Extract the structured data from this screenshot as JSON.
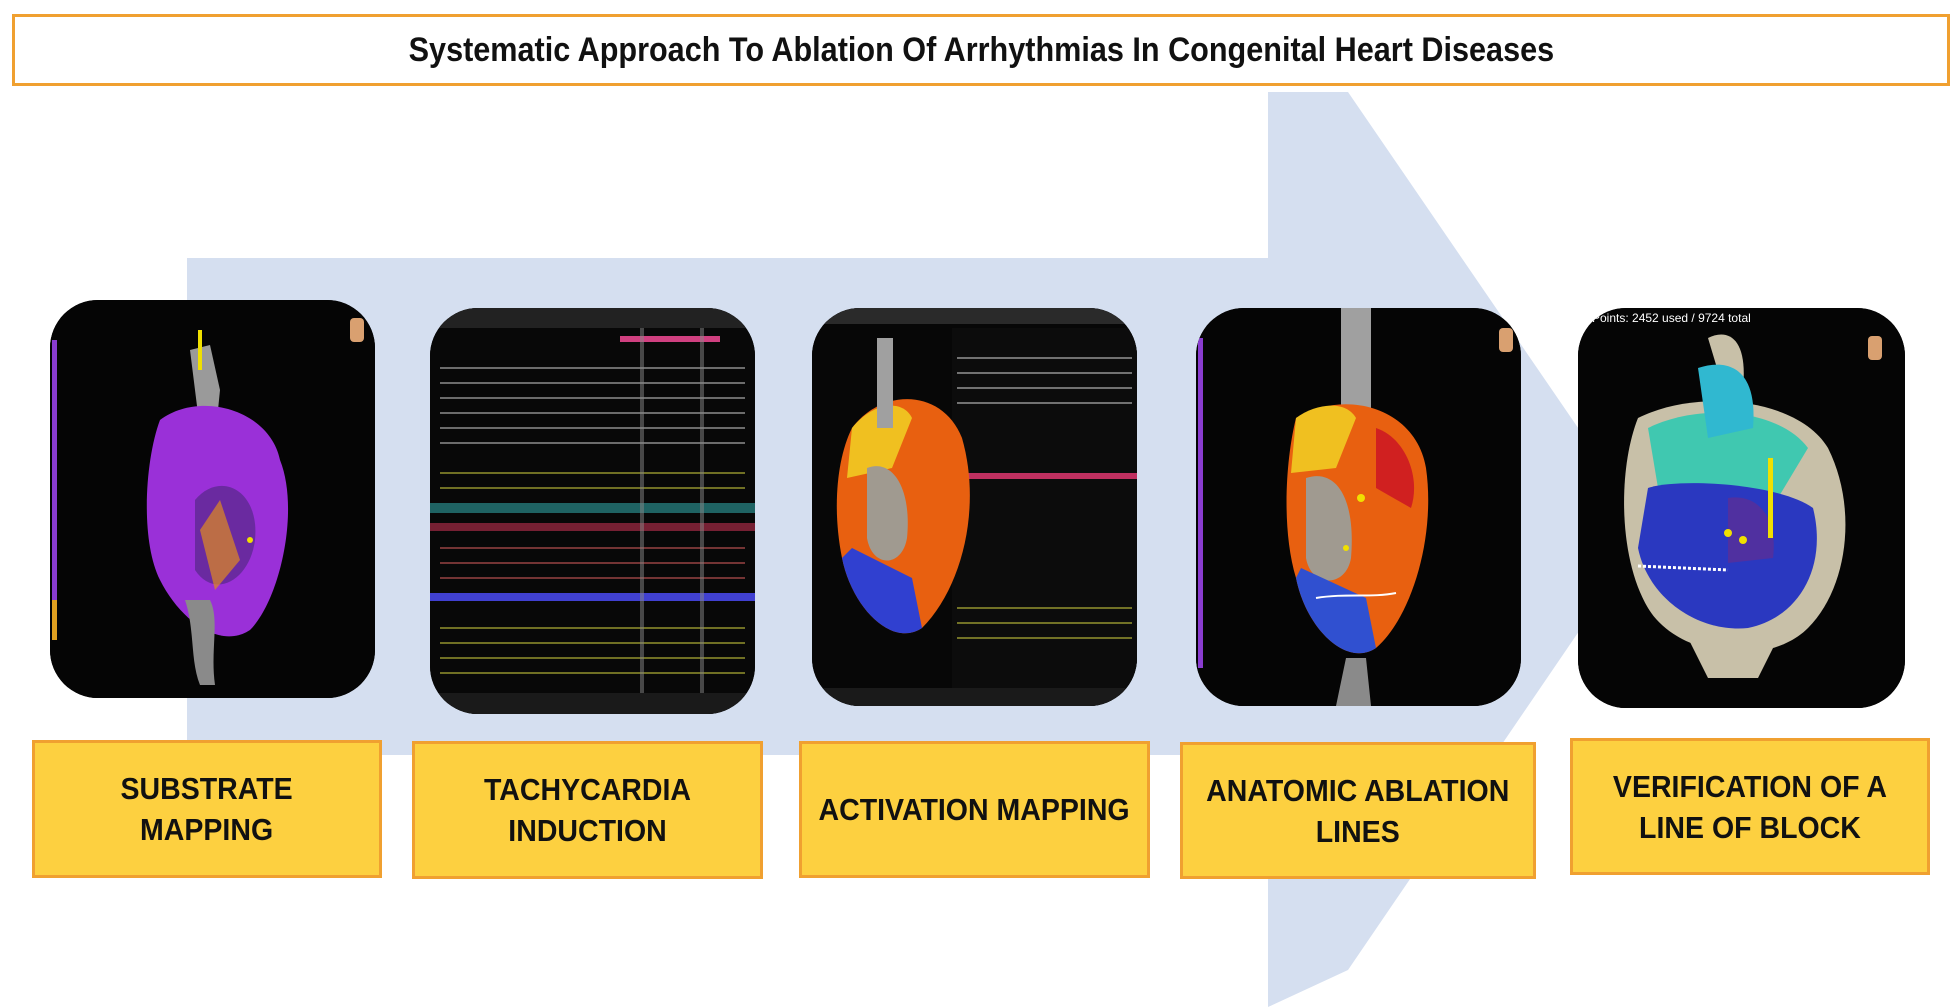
{
  "title": "Systematic Approach To Ablation Of Arrhythmias In Congenital Heart Diseases",
  "colors": {
    "arrow": "#d5dff0",
    "label_fill": "#fdd040",
    "border": "#f0a030"
  },
  "steps": [
    {
      "label": "SUBSTRATE\nMAPPING",
      "image": "substrate-voltage-map"
    },
    {
      "label": "TACHYCARDIA\nINDUCTION",
      "image": "intracardiac-electrograms"
    },
    {
      "label": "ACTIVATION MAPPING",
      "image": "activation-map-with-electrograms"
    },
    {
      "label": "ANATOMIC ABLATION\nLINES",
      "image": "ablation-lines-map"
    },
    {
      "label": "VERIFICATION OF A\nLINE OF BLOCK",
      "image": "line-of-block-map"
    }
  ],
  "panel_readouts": {
    "p5": "Points: 2452 used / 9724 total"
  }
}
